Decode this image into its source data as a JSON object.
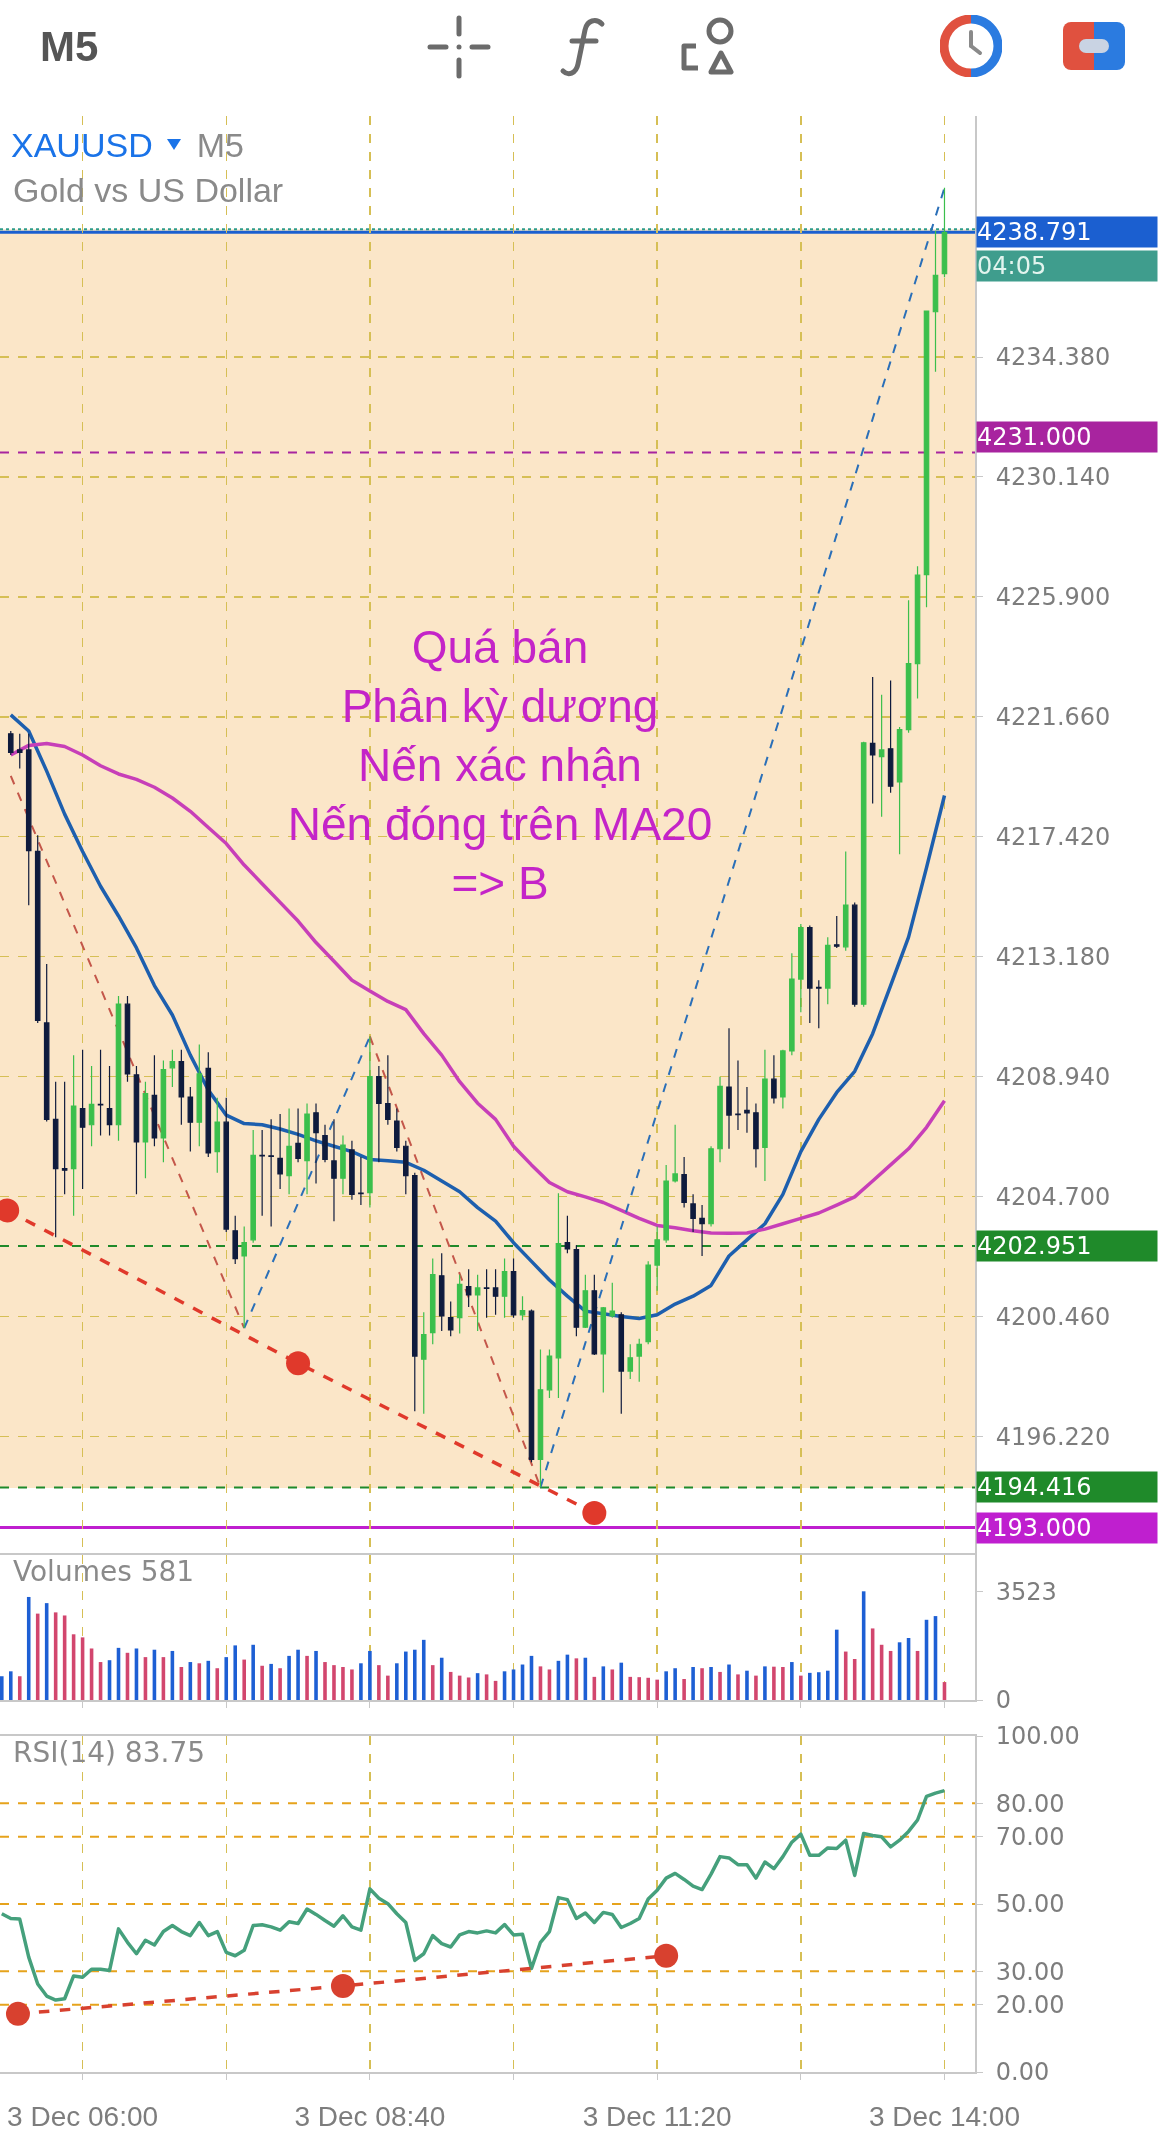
{
  "chart_data": [
    {
      "type": "candlestick",
      "title": "XAUUSD",
      "subtitle": "Gold vs US Dollar",
      "annotations": [
        "M5",
        "M5",
        "Quá bán\nPhân kỳ dương\nNến xác nhận\nNến đóng trên MA20\n=> B",
        "04:05"
      ],
      "x": [
        "--12-03T05:20",
        "--12-03T05:25",
        "--12-03T05:30",
        "--12-03T05:35",
        "--12-03T05:40",
        "--12-03T05:45",
        "--12-03T05:50",
        "--12-03T05:55",
        "--12-03T06:00",
        "--12-03T06:05",
        "--12-03T06:10",
        "--12-03T06:15",
        "--12-03T06:20",
        "--12-03T06:25",
        "--12-03T06:30",
        "--12-03T06:35",
        "--12-03T06:40",
        "--12-03T06:45",
        "--12-03T06:50",
        "--12-03T06:55",
        "--12-03T07:00",
        "--12-03T07:05",
        "--12-03T07:10",
        "--12-03T07:15",
        "--12-03T07:20",
        "--12-03T07:25",
        "--12-03T07:30",
        "--12-03T07:35",
        "--12-03T07:40",
        "--12-03T07:45",
        "--12-03T07:50",
        "--12-03T07:55",
        "--12-03T08:00",
        "--12-03T08:05",
        "--12-03T08:10",
        "--12-03T08:15",
        "--12-03T08:20",
        "--12-03T08:25",
        "--12-03T08:30",
        "--12-03T08:35",
        "--12-03T08:40",
        "--12-03T08:45",
        "--12-03T08:50",
        "--12-03T08:55",
        "--12-03T09:00",
        "--12-03T09:05",
        "--12-03T09:10",
        "--12-03T09:15",
        "--12-03T09:20",
        "--12-03T09:25",
        "--12-03T09:30",
        "--12-03T09:35",
        "--12-03T09:40",
        "--12-03T09:45",
        "--12-03T09:50",
        "--12-03T09:55",
        "--12-03T10:00",
        "--12-03T10:05",
        "--12-03T10:10",
        "--12-03T10:15",
        "--12-03T10:20",
        "--12-03T10:25",
        "--12-03T10:30",
        "--12-03T10:35",
        "--12-03T10:40",
        "--12-03T10:45",
        "--12-03T10:50",
        "--12-03T10:55",
        "--12-03T11:00",
        "--12-03T11:05",
        "--12-03T11:10",
        "--12-03T11:15",
        "--12-03T11:20",
        "--12-03T11:25",
        "--12-03T11:30",
        "--12-03T11:35",
        "--12-03T11:40",
        "--12-03T11:45",
        "--12-03T11:50",
        "--12-03T11:55",
        "--12-03T12:00",
        "--12-03T12:05",
        "--12-03T12:10",
        "--12-03T12:15",
        "--12-03T12:20",
        "--12-03T12:25",
        "--12-03T12:30",
        "--12-03T12:35",
        "--12-03T12:40",
        "--12-03T12:45",
        "--12-03T12:50",
        "--12-03T12:55",
        "--12-03T13:00",
        "--12-03T13:05",
        "--12-03T13:10",
        "--12-03T13:15",
        "--12-03T13:20",
        "--12-03T13:25",
        "--12-03T13:30",
        "--12-03T13:35",
        "--12-03T13:40",
        "--12-03T13:45",
        "--12-03T13:50",
        "--12-03T13:55",
        "--12-03T14:00"
      ],
      "ohlc": [
        [
          4221.06,
          4221.16,
          4220.31,
          4220.4
        ],
        [
          4220.49,
          4221.06,
          4219.83,
          4220.4
        ],
        [
          4220.49,
          4221.06,
          4215.0,
          4216.93
        ],
        [
          4216.9,
          4217.47,
          4210.84,
          4210.93
        ],
        [
          4210.84,
          4212.92,
          4207.35,
          4207.43
        ],
        [
          4207.43,
          4208.76,
          4203.26,
          4205.69
        ],
        [
          4205.69,
          4208.76,
          4204.78,
          4205.63
        ],
        [
          4205.69,
          4209.7,
          4204.02,
          4207.9
        ],
        [
          4207.81,
          4209.89,
          4204.97,
          4207.15
        ],
        [
          4207.24,
          4209.32,
          4206.48,
          4207.96
        ],
        [
          4207.96,
          4209.89,
          4206.86,
          4207.94
        ],
        [
          4207.81,
          4209.32,
          4206.86,
          4207.24
        ],
        [
          4207.24,
          4211.79,
          4206.67,
          4211.5
        ],
        [
          4211.5,
          4211.79,
          4208.76,
          4209.04
        ],
        [
          4209.0,
          4209.32,
          4204.78,
          4206.63
        ],
        [
          4206.63,
          4208.76,
          4205.35,
          4208.34
        ],
        [
          4208.28,
          4209.7,
          4206.48,
          4206.77
        ],
        [
          4206.77,
          4209.51,
          4205.91,
          4209.19
        ],
        [
          4209.25,
          4209.89,
          4208.57,
          4209.47
        ],
        [
          4209.47,
          4209.89,
          4207.24,
          4208.22
        ],
        [
          4208.22,
          4208.57,
          4206.29,
          4207.33
        ],
        [
          4207.33,
          4210.08,
          4206.48,
          4209.04
        ],
        [
          4209.23,
          4209.8,
          4206.1,
          4206.24
        ],
        [
          4206.29,
          4208.19,
          4205.54,
          4207.33
        ],
        [
          4207.33,
          4208.19,
          4203.45,
          4203.55
        ],
        [
          4203.49,
          4204.02,
          4202.32,
          4202.51
        ],
        [
          4202.6,
          4203.64,
          4200.05,
          4203.07
        ],
        [
          4203.17,
          4207.05,
          4203.07,
          4206.16
        ],
        [
          4206.16,
          4207.05,
          4204.02,
          4206.14
        ],
        [
          4206.14,
          4207.43,
          4203.64,
          4206.12
        ],
        [
          4206.05,
          4207.62,
          4204.97,
          4205.5
        ],
        [
          4205.44,
          4207.81,
          4204.78,
          4206.48
        ],
        [
          4206.58,
          4207.81,
          4205.91,
          4206.05
        ],
        [
          4205.97,
          4207.99,
          4204.78,
          4207.62
        ],
        [
          4207.66,
          4207.99,
          4205.16,
          4206.96
        ],
        [
          4206.86,
          4207.24,
          4205.91,
          4206.01
        ],
        [
          4205.96,
          4207.43,
          4203.83,
          4205.35
        ],
        [
          4205.35,
          4206.86,
          4204.78,
          4206.52
        ],
        [
          4206.35,
          4206.67,
          4204.59,
          4204.78
        ],
        [
          4204.82,
          4206.1,
          4204.4,
          4204.8
        ],
        [
          4204.84,
          4210.36,
          4204.31,
          4208.94
        ],
        [
          4208.94,
          4209.32,
          4205.91,
          4207.99
        ],
        [
          4207.99,
          4209.7,
          4207.24,
          4207.43
        ],
        [
          4207.37,
          4207.81,
          4206.29,
          4206.44
        ],
        [
          4206.48,
          4206.67,
          4204.78,
          4205.44
        ],
        [
          4205.44,
          4205.54,
          4197.11,
          4199.06
        ],
        [
          4198.95,
          4200.61,
          4197.02,
          4199.82
        ],
        [
          4199.89,
          4202.51,
          4199.48,
          4201.94
        ],
        [
          4201.9,
          4202.7,
          4199.95,
          4200.48
        ],
        [
          4200.42,
          4200.99,
          4199.76,
          4199.99
        ],
        [
          4200.42,
          4201.94,
          4199.86,
          4201.6
        ],
        [
          4201.52,
          4202.13,
          4200.8,
          4201.22
        ],
        [
          4201.22,
          4201.94,
          4199.95,
          4201.47
        ],
        [
          4201.47,
          4202.13,
          4200.42,
          4201.45
        ],
        [
          4201.47,
          4202.13,
          4200.52,
          4201.18
        ],
        [
          4201.18,
          4202.51,
          4200.42,
          4202.05
        ],
        [
          4202.05,
          4202.51,
          4200.42,
          4200.52
        ],
        [
          4200.52,
          4201.18,
          4200.33,
          4200.67
        ],
        [
          4200.65,
          4200.71,
          4195.31,
          4195.41
        ],
        [
          4195.41,
          4199.29,
          4194.42,
          4197.87
        ],
        [
          4197.87,
          4199.29,
          4197.58,
          4199.06
        ],
        [
          4199.0,
          4204.82,
          4197.58,
          4203.04
        ],
        [
          4203.07,
          4204.02,
          4202.7,
          4202.85
        ],
        [
          4202.83,
          4202.98,
          4199.76,
          4200.08
        ],
        [
          4200.08,
          4201.94,
          4200.05,
          4201.37
        ],
        [
          4201.37,
          4201.94,
          4199.1,
          4199.14
        ],
        [
          4199.14,
          4200.8,
          4197.77,
          4200.77
        ],
        [
          4200.48,
          4201.65,
          4200.42,
          4200.65
        ],
        [
          4200.52,
          4200.61,
          4197.02,
          4198.53
        ],
        [
          4198.53,
          4199.48,
          4198.25,
          4199.0
        ],
        [
          4199.06,
          4199.67,
          4198.15,
          4199.48
        ],
        [
          4199.57,
          4202.41,
          4199.48,
          4202.28
        ],
        [
          4202.28,
          4203.64,
          4201.37,
          4203.17
        ],
        [
          4203.17,
          4205.82,
          4203.07,
          4205.25
        ],
        [
          4205.25,
          4207.24,
          4205.2,
          4205.5
        ],
        [
          4205.48,
          4206.1,
          4204.31,
          4204.49
        ],
        [
          4204.44,
          4204.78,
          4203.45,
          4203.93
        ],
        [
          4203.93,
          4204.4,
          4202.6,
          4203.74
        ],
        [
          4203.74,
          4206.48,
          4203.64,
          4206.39
        ],
        [
          4206.39,
          4208.94,
          4205.91,
          4208.6
        ],
        [
          4208.57,
          4210.65,
          4206.39,
          4207.58
        ],
        [
          4207.62,
          4209.51,
          4207.05,
          4207.6
        ],
        [
          4207.75,
          4208.57,
          4206.96,
          4207.66
        ],
        [
          4207.66,
          4207.99,
          4205.73,
          4206.39
        ],
        [
          4206.44,
          4209.89,
          4205.25,
          4208.85
        ],
        [
          4208.85,
          4209.7,
          4207.99,
          4208.19
        ],
        [
          4208.22,
          4209.89,
          4207.81,
          4209.85
        ],
        [
          4209.85,
          4213.3,
          4209.7,
          4212.39
        ],
        [
          4212.39,
          4214.34,
          4211.22,
          4214.21
        ],
        [
          4214.21,
          4214.28,
          4210.84,
          4212.07
        ],
        [
          4212.1,
          4212.35,
          4210.65,
          4212.07
        ],
        [
          4212.07,
          4213.87,
          4211.5,
          4213.58
        ],
        [
          4213.6,
          4214.62,
          4213.49,
          4213.55
        ],
        [
          4213.53,
          4216.9,
          4213.39,
          4215.0
        ],
        [
          4215.0,
          4215.1,
          4211.41,
          4211.5
        ],
        [
          4211.5,
          4220.78,
          4211.41,
          4220.74
        ],
        [
          4220.72,
          4223.07,
          4218.6,
          4220.31
        ],
        [
          4220.25,
          4222.44,
          4218.13,
          4220.49
        ],
        [
          4220.53,
          4222.94,
          4218.98,
          4219.21
        ],
        [
          4219.36,
          4221.3,
          4216.8,
          4221.21
        ],
        [
          4221.21,
          4225.78,
          4221.1,
          4223.54
        ],
        [
          4223.54,
          4226.98,
          4222.31,
          4226.67
        ],
        [
          4226.69,
          4236.0,
          4225.53,
          4236.0
        ],
        [
          4235.98,
          4238.84,
          4233.86,
          4237.27
        ],
        [
          4237.33,
          4240.36,
          4237.2,
          4238.79
        ]
      ],
      "colors": [
        "#0f1b3d",
        "#0f1b3d",
        "#0f1b3d",
        "#0f1b3d",
        "#0f1b3d",
        "#0f1b3d",
        "#0f1b3d",
        "#3bbf4c",
        "#0f1b3d",
        "#3bbf4c",
        "#0f1b3d",
        "#0f1b3d",
        "#3bbf4c",
        "#0f1b3d",
        "#0f1b3d",
        "#3bbf4c",
        "#0f1b3d",
        "#3bbf4c",
        "#3bbf4c",
        "#0f1b3d",
        "#0f1b3d",
        "#3bbf4c",
        "#0f1b3d",
        "#3bbf4c",
        "#0f1b3d",
        "#0f1b3d",
        "#3bbf4c",
        "#3bbf4c",
        "#0f1b3d",
        "#0f1b3d",
        "#0f1b3d",
        "#3bbf4c",
        "#0f1b3d",
        "#3bbf4c",
        "#0f1b3d",
        "#0f1b3d",
        "#0f1b3d",
        "#3bbf4c",
        "#0f1b3d",
        "#0f1b3d",
        "#3bbf4c",
        "#0f1b3d",
        "#0f1b3d",
        "#0f1b3d",
        "#0f1b3d",
        "#0f1b3d",
        "#3bbf4c",
        "#3bbf4c",
        "#0f1b3d",
        "#0f1b3d",
        "#3bbf4c",
        "#0f1b3d",
        "#3bbf4c",
        "#0f1b3d",
        "#0f1b3d",
        "#3bbf4c",
        "#0f1b3d",
        "#3bbf4c",
        "#0f1b3d",
        "#3bbf4c",
        "#3bbf4c",
        "#3bbf4c",
        "#0f1b3d",
        "#0f1b3d",
        "#3bbf4c",
        "#0f1b3d",
        "#3bbf4c",
        "#3bbf4c",
        "#0f1b3d",
        "#3bbf4c",
        "#3bbf4c",
        "#3bbf4c",
        "#3bbf4c",
        "#3bbf4c",
        "#3bbf4c",
        "#0f1b3d",
        "#0f1b3d",
        "#0f1b3d",
        "#3bbf4c",
        "#3bbf4c",
        "#0f1b3d",
        "#0f1b3d",
        "#0f1b3d",
        "#0f1b3d",
        "#3bbf4c",
        "#0f1b3d",
        "#3bbf4c",
        "#3bbf4c",
        "#3bbf4c",
        "#0f1b3d",
        "#0f1b3d",
        "#3bbf4c",
        "#0f1b3d",
        "#3bbf4c",
        "#0f1b3d",
        "#3bbf4c",
        "#0f1b3d",
        "#3bbf4c",
        "#0f1b3d",
        "#3bbf4c",
        "#3bbf4c",
        "#3bbf4c",
        "#3bbf4c",
        "#3bbf4c",
        "#3bbf4c"
      ],
      "series": [
        {
          "type": "line",
          "color": "#1d5fae",
          "x": [
            "--12-03T05:20",
            "--12-03T05:30",
            "--12-03T05:40",
            "--12-03T05:50",
            "--12-03T06:00",
            "--12-03T06:10",
            "--12-03T06:20",
            "--12-03T06:30",
            "--12-03T06:40",
            "--12-03T06:50",
            "--12-03T07:00",
            "--12-03T07:10",
            "--12-03T07:20",
            "--12-03T07:30",
            "--12-03T07:40",
            "--12-03T07:50",
            "--12-03T08:00",
            "--12-03T08:10",
            "--12-03T08:20",
            "--12-03T08:30",
            "--12-03T08:40",
            "--12-03T08:50",
            "--12-03T09:00",
            "--12-03T09:10",
            "--12-03T09:20",
            "--12-03T09:30",
            "--12-03T09:40",
            "--12-03T09:50",
            "--12-03T10:00",
            "--12-03T10:10",
            "--12-03T10:20",
            "--12-03T10:30",
            "--12-03T10:40",
            "--12-03T10:50",
            "--12-03T11:00",
            "--12-03T11:10",
            "--12-03T11:20",
            "--12-03T11:30",
            "--12-03T11:40",
            "--12-03T11:50",
            "--12-03T12:00",
            "--12-03T12:10",
            "--12-03T12:20",
            "--12-03T12:30",
            "--12-03T12:40",
            "--12-03T12:50",
            "--12-03T13:00",
            "--12-03T13:10",
            "--12-03T13:20",
            "--12-03T13:30",
            "--12-03T13:40",
            "--12-03T13:50",
            "--12-03T14:00"
          ],
          "values": [
            4221.73,
            4221.16,
            4219.74,
            4218.22,
            4216.9,
            4215.67,
            4214.62,
            4213.49,
            4212.16,
            4211.12,
            4209.7,
            4208.47,
            4207.58,
            4207.28,
            4207.24,
            4207.09,
            4206.9,
            4206.67,
            4206.48,
            4206.29,
            4206.01,
            4205.97,
            4205.91,
            4205.63,
            4205.25,
            4204.87,
            4204.31,
            4203.83,
            4203.07,
            4202.41,
            4201.75,
            4201.18,
            4200.65,
            4200.56,
            4200.46,
            4200.39,
            4200.52,
            4200.9,
            4201.18,
            4201.56,
            4202.6,
            4203.17,
            4203.74,
            4204.78,
            4206.29,
            4207.43,
            4208.38,
            4209.13,
            4210.46,
            4212.16,
            4213.87,
            4216.33,
            4218.88
          ]
        },
        {
          "type": "line",
          "color": "#c73fb8",
          "x": [
            "--12-03T05:20",
            "--12-03T05:30",
            "--12-03T05:40",
            "--12-03T05:50",
            "--12-03T06:00",
            "--12-03T06:10",
            "--12-03T06:20",
            "--12-03T06:30",
            "--12-03T06:40",
            "--12-03T06:50",
            "--12-03T07:00",
            "--12-03T07:10",
            "--12-03T07:20",
            "--12-03T07:30",
            "--12-03T07:40",
            "--12-03T07:50",
            "--12-03T08:00",
            "--12-03T08:10",
            "--12-03T08:20",
            "--12-03T08:30",
            "--12-03T08:40",
            "--12-03T08:50",
            "--12-03T09:00",
            "--12-03T09:10",
            "--12-03T09:20",
            "--12-03T09:30",
            "--12-03T09:40",
            "--12-03T09:50",
            "--12-03T10:00",
            "--12-03T10:10",
            "--12-03T10:20",
            "--12-03T10:30",
            "--12-03T10:40",
            "--12-03T10:50",
            "--12-03T11:00",
            "--12-03T11:10",
            "--12-03T11:20",
            "--12-03T11:30",
            "--12-03T11:40",
            "--12-03T11:50",
            "--12-03T12:00",
            "--12-03T12:10",
            "--12-03T12:20",
            "--12-03T12:30",
            "--12-03T12:40",
            "--12-03T12:50",
            "--12-03T13:00",
            "--12-03T13:10",
            "--12-03T13:20",
            "--12-03T13:30",
            "--12-03T13:40",
            "--12-03T13:50",
            "--12-03T14:00"
          ],
          "values": [
            4220.31,
            4220.65,
            4220.72,
            4220.61,
            4220.31,
            4219.93,
            4219.64,
            4219.45,
            4219.17,
            4218.79,
            4218.32,
            4217.75,
            4217.18,
            4216.42,
            4215.76,
            4215.1,
            4214.44,
            4213.68,
            4213.02,
            4212.35,
            4211.97,
            4211.6,
            4211.31,
            4210.46,
            4209.7,
            4208.76,
            4208.0,
            4207.43,
            4206.48,
            4205.82,
            4205.2,
            4204.87,
            4204.69,
            4204.49,
            4204.21,
            4203.93,
            4203.68,
            4203.6,
            4203.49,
            4203.41,
            4203.4,
            4203.41,
            4203.55,
            4203.74,
            4203.93,
            4204.12,
            4204.4,
            4204.69,
            4205.25,
            4205.82,
            4206.39,
            4207.15,
            4208.09
          ]
        },
        {
          "type": "line",
          "color": "#c4574a",
          "line_style": "dashed",
          "x": [
            "--12-03T05:20",
            "--12-03T07:30",
            "--12-03T08:05",
            "--12-03T08:40",
            "--12-03T10:15"
          ],
          "values": [
            4219.57,
            4200.05,
            null,
            4210.36,
            4194.42
          ]
        },
        {
          "type": "line",
          "color": "#2a6fb8",
          "line_style": "dashed",
          "x": [
            "--12-03T07:30",
            "--12-03T08:40",
            "--12-03T09:30",
            "--12-03T10:15",
            "--12-03T14:00"
          ],
          "values": [
            4200.05,
            4210.36,
            null,
            4194.42,
            4240.36
          ]
        },
        {
          "type": "line",
          "color": "#e0392b",
          "line_style": "dashed",
          "marker": "circle",
          "x": [
            "--12-03T05:18",
            "--12-03T08:00",
            "--12-03T10:45"
          ],
          "values": [
            4204.21,
            4198.81,
            4193.51
          ]
        }
      ],
      "xlim": [
        "--12-03T05:14",
        "--12-03T14:17"
      ],
      "xticks": [
        {
          "value": "--12-03T06:00",
          "label": "3 Dec 06:00"
        },
        {
          "value": "--12-03T07:20",
          "label": null
        },
        {
          "value": "--12-03T08:40",
          "label": "3 Dec 08:40"
        },
        {
          "value": "--12-03T10:00",
          "label": null
        },
        {
          "value": "--12-03T11:20",
          "label": "3 Dec 11:20"
        },
        {
          "value": "--12-03T12:40",
          "label": null
        },
        {
          "value": "--12-03T14:00",
          "label": "3 Dec 14:00"
        }
      ],
      "ylim": [
        4192.1,
        4242.9
      ],
      "yticks": [
        {
          "value": 4196.22,
          "label": "4196.220"
        },
        {
          "value": 4200.46,
          "label": "4200.460"
        },
        {
          "value": 4204.7,
          "label": "4204.700"
        },
        {
          "value": 4208.94,
          "label": "4208.940"
        },
        {
          "value": 4213.18,
          "label": "4213.180"
        },
        {
          "value": 4217.42,
          "label": "4217.420"
        },
        {
          "value": 4221.66,
          "label": "4221.660"
        },
        {
          "value": 4225.9,
          "label": "4225.900"
        },
        {
          "value": 4230.14,
          "label": "4230.140"
        },
        {
          "value": 4234.38,
          "label": "4234.380"
        }
      ],
      "grid": true,
      "tick_labels": "y",
      "ref_lines": [
        {
          "axis": "y",
          "value": 4238.791,
          "label": "4238.791",
          "color": "#1b5fd0",
          "line_style": "solid"
        },
        {
          "axis": "y",
          "value": 4238.9,
          "color": "#2f9c8c",
          "line_style": "dotted"
        },
        {
          "axis": "y",
          "value": 4231.0,
          "label": "4231.000",
          "color": "#a8249f",
          "line_style": "dashed"
        },
        {
          "axis": "y",
          "value": 4202.951,
          "label": "4202.951",
          "color": "#1f8a2a",
          "line_style": "dashed"
        },
        {
          "axis": "y",
          "value": 4194.416,
          "label": "4194.416",
          "color": "#1f8a2a",
          "line_style": "dashed"
        },
        {
          "axis": "y",
          "value": 4193.0,
          "label": "4193.000",
          "color": "#bf1fcf",
          "line_style": "solid"
        }
      ],
      "bands": [
        {
          "axis": "y",
          "from": 4194.4,
          "to": 4238.9,
          "color": "#fbe6c8"
        }
      ]
    },
    {
      "type": "bar",
      "title": "Volumes 581",
      "x": [
        "--12-03T05:15",
        "--12-03T05:20",
        "--12-03T05:25",
        "--12-03T05:30",
        "--12-03T05:35",
        "--12-03T05:40",
        "--12-03T05:45",
        "--12-03T05:50",
        "--12-03T05:55",
        "--12-03T06:00",
        "--12-03T06:05",
        "--12-03T06:10",
        "--12-03T06:15",
        "--12-03T06:20",
        "--12-03T06:25",
        "--12-03T06:30",
        "--12-03T06:35",
        "--12-03T06:40",
        "--12-03T06:45",
        "--12-03T06:50",
        "--12-03T06:55",
        "--12-03T07:00",
        "--12-03T07:05",
        "--12-03T07:10",
        "--12-03T07:15",
        "--12-03T07:20",
        "--12-03T07:25",
        "--12-03T07:30",
        "--12-03T07:35",
        "--12-03T07:40",
        "--12-03T07:45",
        "--12-03T07:50",
        "--12-03T07:55",
        "--12-03T08:00",
        "--12-03T08:05",
        "--12-03T08:10",
        "--12-03T08:15",
        "--12-03T08:20",
        "--12-03T08:25",
        "--12-03T08:30",
        "--12-03T08:35",
        "--12-03T08:40",
        "--12-03T08:45",
        "--12-03T08:50",
        "--12-03T08:55",
        "--12-03T09:00",
        "--12-03T09:05",
        "--12-03T09:10",
        "--12-03T09:15",
        "--12-03T09:20",
        "--12-03T09:25",
        "--12-03T09:30",
        "--12-03T09:35",
        "--12-03T09:40",
        "--12-03T09:45",
        "--12-03T09:50",
        "--12-03T09:55",
        "--12-03T10:00",
        "--12-03T10:05",
        "--12-03T10:10",
        "--12-03T10:15",
        "--12-03T10:20",
        "--12-03T10:25",
        "--12-03T10:30",
        "--12-03T10:35",
        "--12-03T10:40",
        "--12-03T10:45",
        "--12-03T10:50",
        "--12-03T10:55",
        "--12-03T11:00",
        "--12-03T11:05",
        "--12-03T11:10",
        "--12-03T11:15",
        "--12-03T11:20",
        "--12-03T11:25",
        "--12-03T11:30",
        "--12-03T11:35",
        "--12-03T11:40",
        "--12-03T11:45",
        "--12-03T11:50",
        "--12-03T11:55",
        "--12-03T12:00",
        "--12-03T12:05",
        "--12-03T12:10",
        "--12-03T12:15",
        "--12-03T12:20",
        "--12-03T12:25",
        "--12-03T12:30",
        "--12-03T12:35",
        "--12-03T12:40",
        "--12-03T12:45",
        "--12-03T12:50",
        "--12-03T12:55",
        "--12-03T13:00",
        "--12-03T13:05",
        "--12-03T13:10",
        "--12-03T13:15",
        "--12-03T13:20",
        "--12-03T13:25",
        "--12-03T13:30",
        "--12-03T13:35",
        "--12-03T13:40",
        "--12-03T13:45",
        "--12-03T13:50",
        "--12-03T13:55",
        "--12-03T14:00"
      ],
      "values": [
        770,
        930,
        770,
        3340,
        2800,
        3140,
        2840,
        2740,
        2130,
        2030,
        1670,
        1230,
        1290,
        1690,
        1530,
        1670,
        1390,
        1630,
        1390,
        1590,
        1070,
        1230,
        1190,
        1270,
        1030,
        1390,
        1770,
        1310,
        1790,
        1110,
        1170,
        1030,
        1430,
        1630,
        1430,
        1590,
        1230,
        1130,
        1070,
        990,
        1190,
        1590,
        1130,
        790,
        1190,
        1570,
        1630,
        1950,
        1130,
        1370,
        910,
        790,
        730,
        870,
        830,
        620,
        930,
        990,
        1150,
        1430,
        1090,
        990,
        1270,
        1470,
        1350,
        1370,
        750,
        1090,
        990,
        1210,
        750,
        740,
        720,
        660,
        930,
        1030,
        680,
        1070,
        1030,
        1070,
        910,
        1150,
        830,
        950,
        790,
        1090,
        1080,
        1070,
        1230,
        790,
        880,
        900,
        950,
        2280,
        1570,
        1330,
        3523,
        2320,
        1790,
        1590,
        1870,
        2010,
        1590,
        2600,
        2720,
        581
      ],
      "colors": [
        "#1d5fd4",
        "#1d5fd4",
        "#d2466e",
        "#1d5fd4",
        "#d2466e",
        "#1d5fd4",
        "#d2466e",
        "#d2466e",
        "#d2466e",
        "#d2466e",
        "#d2466e",
        "#d2466e",
        "#1d5fd4",
        "#1d5fd4",
        "#d2466e",
        "#1d5fd4",
        "#d2466e",
        "#1d5fd4",
        "#d2466e",
        "#1d5fd4",
        "#d2466e",
        "#1d5fd4",
        "#d2466e",
        "#1d5fd4",
        "#d2466e",
        "#1d5fd4",
        "#1d5fd4",
        "#d2466e",
        "#1d5fd4",
        "#d2466e",
        "#1d5fd4",
        "#d2466e",
        "#1d5fd4",
        "#1d5fd4",
        "#d2466e",
        "#1d5fd4",
        "#d2466e",
        "#d2466e",
        "#d2466e",
        "#d2466e",
        "#1d5fd4",
        "#1d5fd4",
        "#d2466e",
        "#d2466e",
        "#1d5fd4",
        "#1d5fd4",
        "#1d5fd4",
        "#1d5fd4",
        "#d2466e",
        "#1d5fd4",
        "#d2466e",
        "#d2466e",
        "#d2466e",
        "#1d5fd4",
        "#d2466e",
        "#d2466e",
        "#1d5fd4",
        "#1d5fd4",
        "#1d5fd4",
        "#1d5fd4",
        "#d2466e",
        "#d2466e",
        "#1d5fd4",
        "#1d5fd4",
        "#d2466e",
        "#1d5fd4",
        "#d2466e",
        "#1d5fd4",
        "#d2466e",
        "#1d5fd4",
        "#d2466e",
        "#d2466e",
        "#d2466e",
        "#d2466e",
        "#1d5fd4",
        "#1d5fd4",
        "#d2466e",
        "#1d5fd4",
        "#d2466e",
        "#1d5fd4",
        "#d2466e",
        "#1d5fd4",
        "#d2466e",
        "#1d5fd4",
        "#d2466e",
        "#1d5fd4",
        "#d2466e",
        "#d2466e",
        "#1d5fd4",
        "#d2466e",
        "#1d5fd4",
        "#1d5fd4",
        "#1d5fd4",
        "#1d5fd4",
        "#d2466e",
        "#d2466e",
        "#1d5fd4",
        "#d2466e",
        "#d2466e",
        "#d2466e",
        "#1d5fd4",
        "#1d5fd4",
        "#d2466e",
        "#1d5fd4",
        "#1d5fd4",
        "#d2466e"
      ],
      "xlim": [
        "--12-03T05:14",
        "--12-03T14:17"
      ],
      "xticks": [
        {
          "value": "--12-03T06:00",
          "label": "3 Dec 06:00"
        },
        {
          "value": "--12-03T07:20",
          "label": null
        },
        {
          "value": "--12-03T08:40",
          "label": "3 Dec 08:40"
        },
        {
          "value": "--12-03T10:00",
          "label": null
        },
        {
          "value": "--12-03T11:20",
          "label": "3 Dec 11:20"
        },
        {
          "value": "--12-03T12:40",
          "label": null
        },
        {
          "value": "--12-03T14:00",
          "label": "3 Dec 14:00"
        }
      ],
      "ylim": [
        0,
        4700
      ],
      "yticks": [
        0,
        3523
      ],
      "grid": "x",
      "tick_labels": "y"
    },
    {
      "type": "line",
      "title": "RSI(14) 83.75",
      "series": [
        {
          "color": "#45a07c",
          "x": [
            "--12-03T05:15",
            "--12-03T05:20",
            "--12-03T05:25",
            "--12-03T05:30",
            "--12-03T05:35",
            "--12-03T05:40",
            "--12-03T05:45",
            "--12-03T05:50",
            "--12-03T05:55",
            "--12-03T06:00",
            "--12-03T06:05",
            "--12-03T06:10",
            "--12-03T06:15",
            "--12-03T06:20",
            "--12-03T06:25",
            "--12-03T06:30",
            "--12-03T06:35",
            "--12-03T06:40",
            "--12-03T06:45",
            "--12-03T06:50",
            "--12-03T06:55",
            "--12-03T07:00",
            "--12-03T07:05",
            "--12-03T07:10",
            "--12-03T07:15",
            "--12-03T07:20",
            "--12-03T07:25",
            "--12-03T07:30",
            "--12-03T07:35",
            "--12-03T07:40",
            "--12-03T07:45",
            "--12-03T07:50",
            "--12-03T07:55",
            "--12-03T08:00",
            "--12-03T08:05",
            "--12-03T08:10",
            "--12-03T08:15",
            "--12-03T08:20",
            "--12-03T08:25",
            "--12-03T08:30",
            "--12-03T08:35",
            "--12-03T08:40",
            "--12-03T08:45",
            "--12-03T08:50",
            "--12-03T08:55",
            "--12-03T09:00",
            "--12-03T09:05",
            "--12-03T09:10",
            "--12-03T09:15",
            "--12-03T09:20",
            "--12-03T09:25",
            "--12-03T09:30",
            "--12-03T09:35",
            "--12-03T09:40",
            "--12-03T09:45",
            "--12-03T09:50",
            "--12-03T09:55",
            "--12-03T10:00",
            "--12-03T10:05",
            "--12-03T10:10",
            "--12-03T10:15",
            "--12-03T10:20",
            "--12-03T10:25",
            "--12-03T10:30",
            "--12-03T10:35",
            "--12-03T10:40",
            "--12-03T10:45",
            "--12-03T10:50",
            "--12-03T10:55",
            "--12-03T11:00",
            "--12-03T11:05",
            "--12-03T11:10",
            "--12-03T11:15",
            "--12-03T11:20",
            "--12-03T11:25",
            "--12-03T11:30",
            "--12-03T11:35",
            "--12-03T11:40",
            "--12-03T11:45",
            "--12-03T11:50",
            "--12-03T11:55",
            "--12-03T12:00",
            "--12-03T12:05",
            "--12-03T12:10",
            "--12-03T12:15",
            "--12-03T12:20",
            "--12-03T12:25",
            "--12-03T12:30",
            "--12-03T12:35",
            "--12-03T12:40",
            "--12-03T12:45",
            "--12-03T12:50",
            "--12-03T12:55",
            "--12-03T13:00",
            "--12-03T13:05",
            "--12-03T13:10",
            "--12-03T13:15",
            "--12-03T13:20",
            "--12-03T13:25",
            "--12-03T13:30",
            "--12-03T13:35",
            "--12-03T13:40",
            "--12-03T13:45",
            "--12-03T13:50",
            "--12-03T13:55",
            "--12-03T14:00"
          ],
          "values": [
            47.1,
            45.7,
            45.5,
            34.2,
            26.2,
            22.6,
            21.4,
            21.8,
            28.6,
            28.2,
            30.6,
            30.6,
            30.2,
            42.6,
            38.6,
            35.2,
            39.2,
            37.8,
            41.8,
            43.6,
            41.8,
            40.6,
            44.5,
            40.6,
            41.8,
            35.6,
            34.6,
            36.2,
            43.6,
            43.8,
            43.2,
            42.2,
            44.7,
            44.2,
            48.5,
            46.9,
            45.1,
            43.4,
            46.5,
            43.2,
            42.2,
            54.5,
            51.7,
            50.1,
            47.1,
            44.5,
            33.2,
            35.2,
            40.6,
            38.2,
            37.2,
            40.8,
            41.8,
            41.4,
            42.0,
            41.4,
            43.9,
            40.8,
            41.0,
            30.8,
            38.6,
            41.8,
            51.9,
            51.3,
            45.7,
            47.3,
            44.5,
            47.5,
            46.9,
            43.0,
            44.2,
            45.7,
            51.5,
            54.1,
            57.7,
            59.1,
            57.3,
            55.3,
            54.3,
            58.9,
            64.1,
            63.7,
            61.7,
            61.7,
            57.7,
            62.5,
            60.5,
            64.1,
            68.4,
            70.8,
            64.5,
            64.5,
            66.7,
            66.5,
            69.0,
            58.5,
            71.0,
            70.4,
            70.0,
            67.0,
            69.0,
            71.6,
            75.0,
            82.0,
            83.0,
            83.75
          ]
        },
        {
          "color": "#d8412f",
          "line_style": "dashed",
          "marker": "circle",
          "x": [
            "--12-03T05:24",
            "--12-03T08:25",
            "--12-03T11:25"
          ],
          "values": [
            17.3,
            25.6,
            34.6
          ]
        }
      ],
      "xlim": [
        "--12-03T05:14",
        "--12-03T14:17"
      ],
      "xticks": [
        {
          "value": "--12-03T06:00",
          "label": "3 Dec 06:00"
        },
        {
          "value": "--12-03T07:20",
          "label": null
        },
        {
          "value": "--12-03T08:40",
          "label": "3 Dec 08:40"
        },
        {
          "value": "--12-03T10:00",
          "label": null
        },
        {
          "value": "--12-03T11:20",
          "label": "3 Dec 11:20"
        },
        {
          "value": "--12-03T12:40",
          "label": null
        },
        {
          "value": "--12-03T14:00",
          "label": "3 Dec 14:00"
        }
      ],
      "ylim": [
        0,
        100
      ],
      "yticks": [
        {
          "value": 100,
          "label": "100.00"
        },
        {
          "value": 80,
          "label": "80.00"
        },
        {
          "value": 70,
          "label": "70.00"
        },
        {
          "value": 50,
          "label": "50.00"
        },
        {
          "value": 30,
          "label": "30.00"
        },
        {
          "value": 20,
          "label": "20.00"
        },
        {
          "value": 0,
          "label": "0.00"
        }
      ],
      "grid": "x",
      "ref_lines": [
        {
          "axis": "y",
          "value": 80,
          "color": "#e6a31c",
          "line_style": "dashed"
        },
        {
          "axis": "y",
          "value": 70,
          "color": "#e6a31c",
          "line_style": "dashed"
        },
        {
          "axis": "y",
          "value": 50,
          "color": "#e6a31c",
          "line_style": "dashed"
        },
        {
          "axis": "y",
          "value": 30,
          "color": "#e6a31c",
          "line_style": "dashed"
        },
        {
          "axis": "y",
          "value": 20,
          "color": "#e6a31c",
          "line_style": "dashed"
        }
      ]
    }
  ]
}
